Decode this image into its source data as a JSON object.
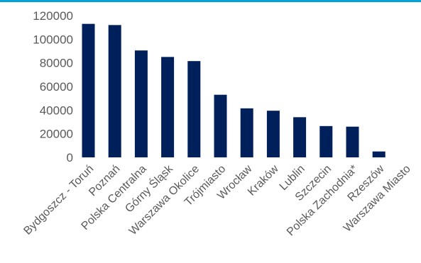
{
  "colors": {
    "bar": "#00205b",
    "accent_rule": "#00a3d8",
    "tick_text": "#595959"
  },
  "chart_data": {
    "type": "bar",
    "categories": [
      "Bydgoszcz - Toruń",
      "Poznań",
      "Polska Centralna",
      "Górny Śląsk",
      "Warszawa Okolice",
      "Trójmiasto",
      "Wrocław",
      "Kraków",
      "Lublin",
      "Szczecin",
      "Polska Zachodnia*",
      "Rzeszów",
      "Warszawa Miasto"
    ],
    "values": [
      113000,
      112000,
      90500,
      85000,
      81500,
      53000,
      41500,
      39500,
      34000,
      26500,
      26000,
      5000,
      0
    ],
    "yticks": [
      "0",
      "20000",
      "40000",
      "60000",
      "80000",
      "100000",
      "120000"
    ],
    "ylim": [
      0,
      120000
    ],
    "grid": false,
    "legend": "none"
  }
}
